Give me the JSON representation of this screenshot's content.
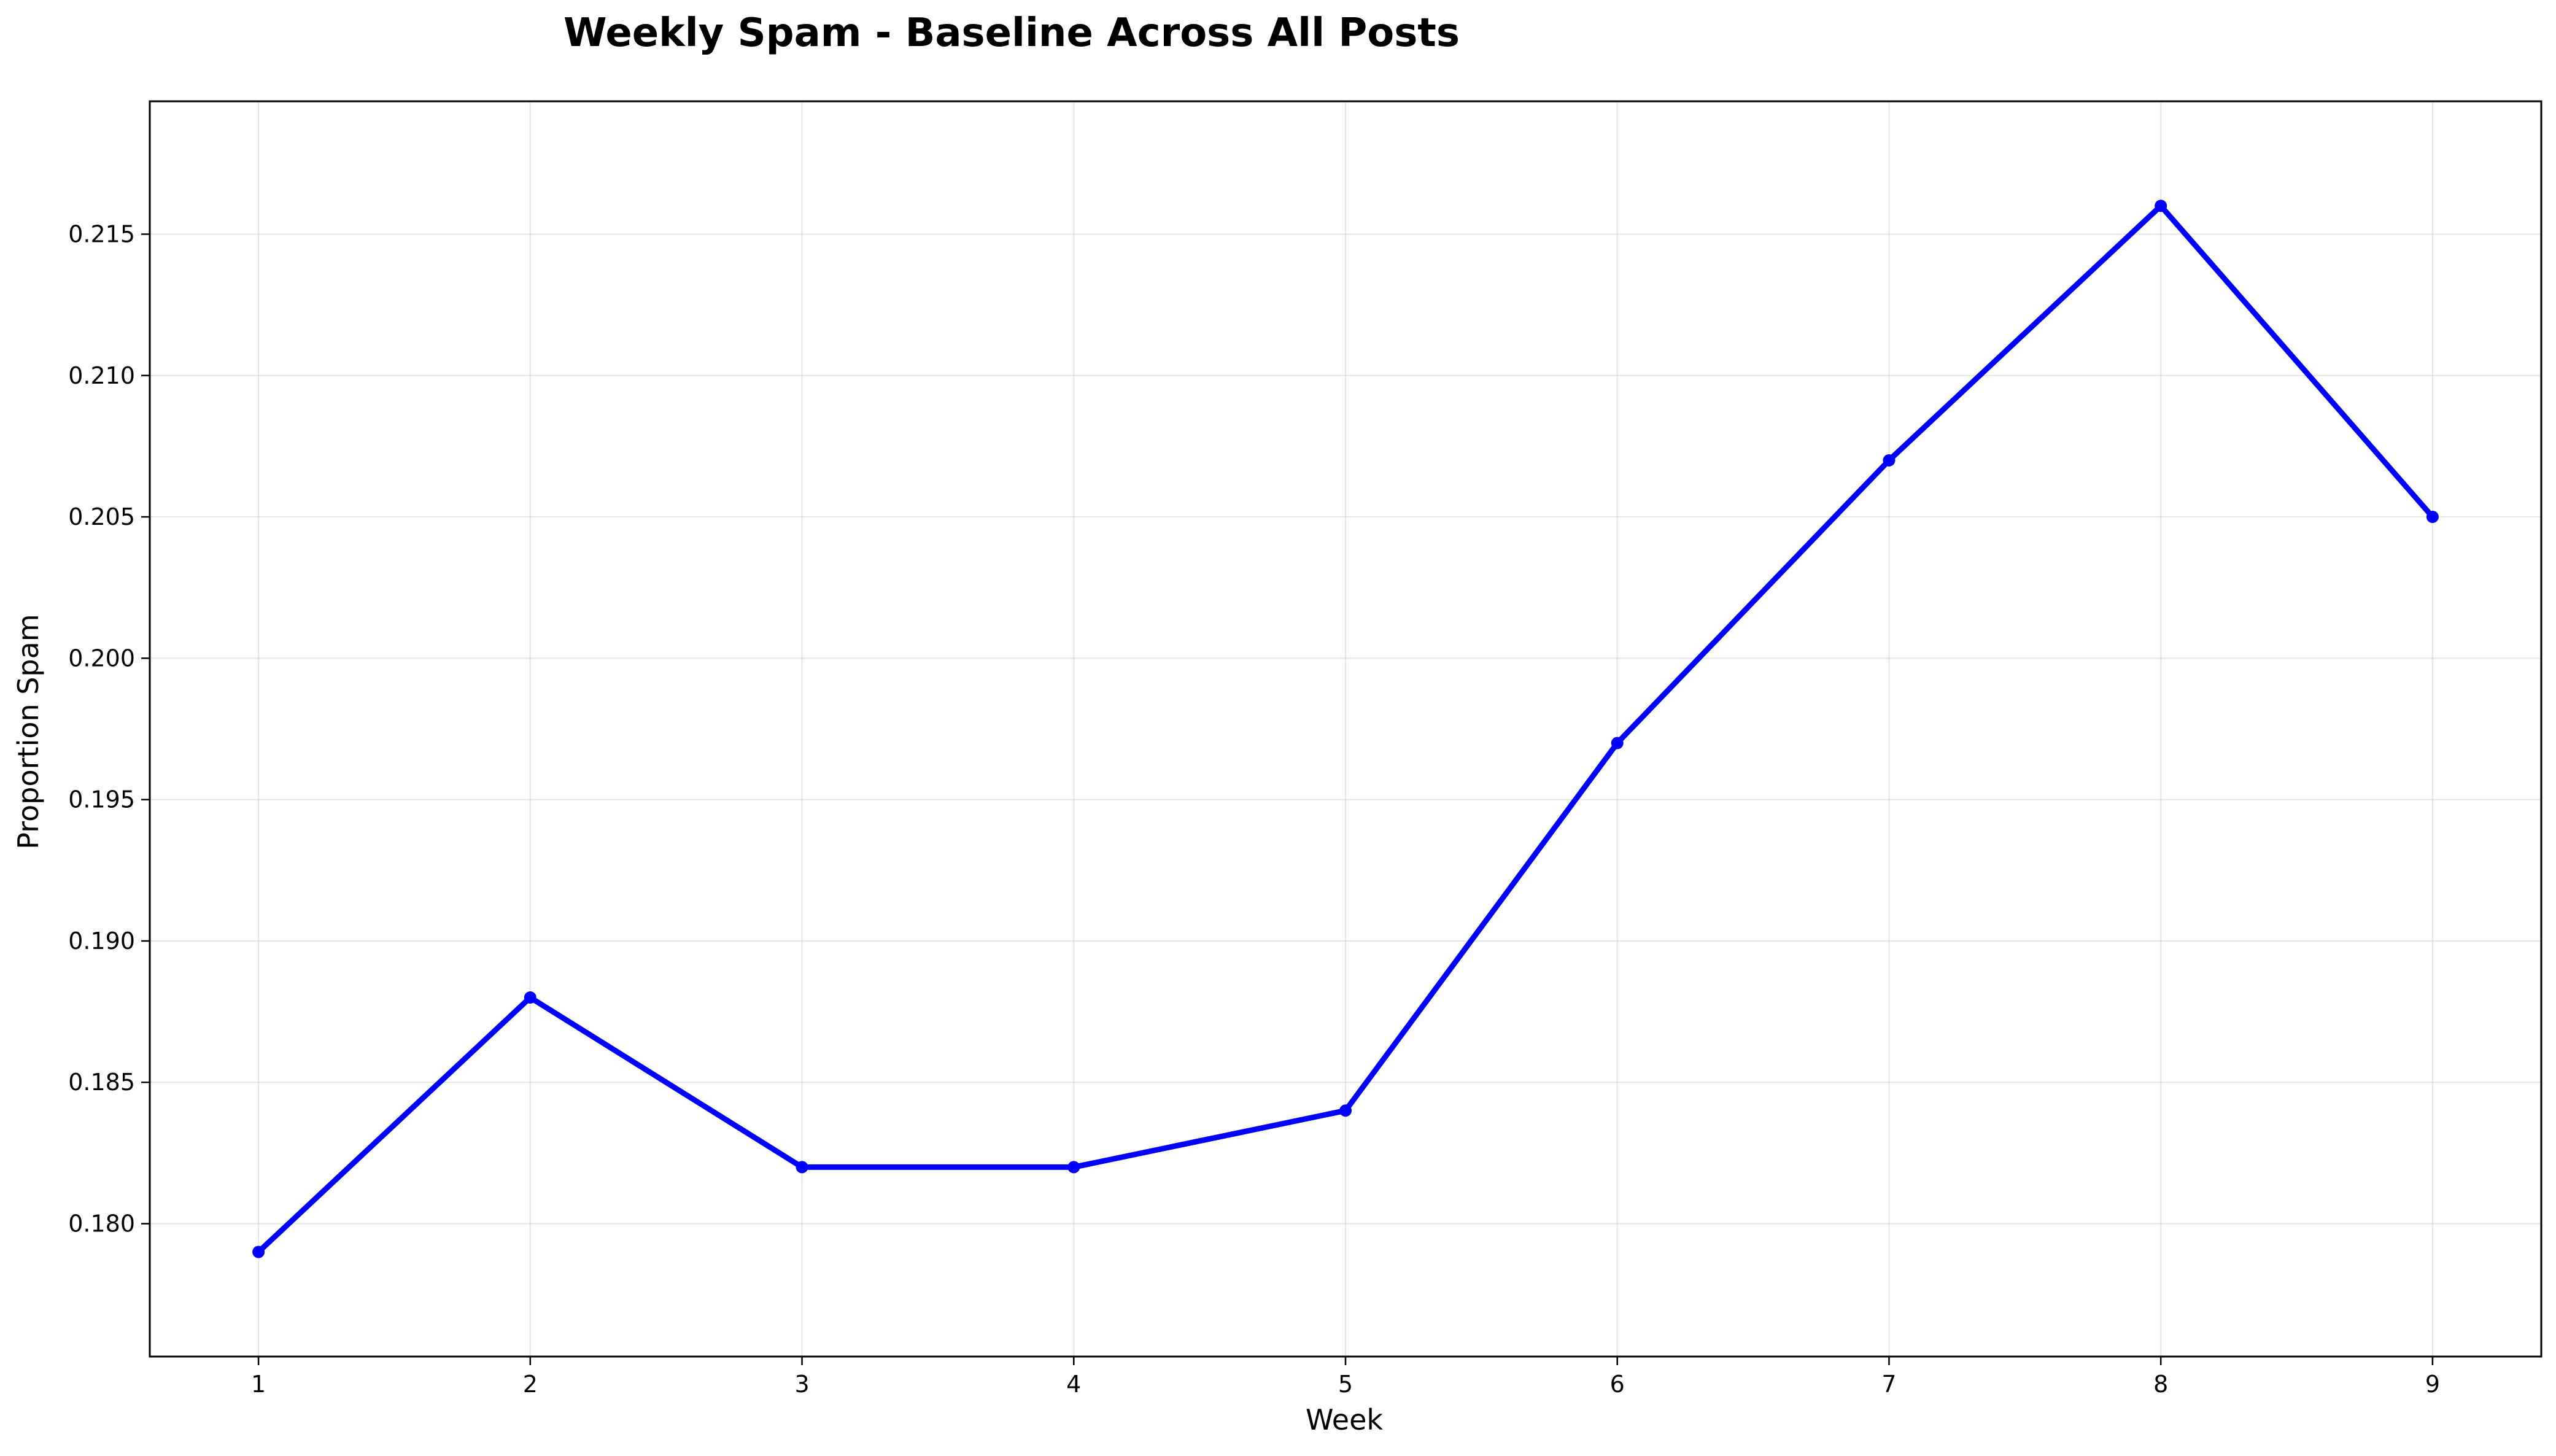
{
  "chart_data": {
    "type": "line",
    "title": "Weekly Spam - Baseline Across All Posts",
    "xlabel": "Week",
    "ylabel": "Proportion Spam",
    "x": [
      1,
      2,
      3,
      4,
      5,
      6,
      7,
      8,
      9
    ],
    "x_tick_labels": [
      "1",
      "2",
      "3",
      "4",
      "5",
      "6",
      "7",
      "8",
      "9"
    ],
    "xlim": [
      0.6,
      9.4
    ],
    "ylim": [
      0.1753,
      0.2197
    ],
    "y_ticks": [
      0.18,
      0.185,
      0.19,
      0.195,
      0.2,
      0.205,
      0.21,
      0.215
    ],
    "y_tick_labels": [
      "0.180",
      "0.185",
      "0.190",
      "0.195",
      "0.200",
      "0.205",
      "0.210",
      "0.215"
    ],
    "series": [
      {
        "values": [
          0.179,
          0.188,
          0.182,
          0.182,
          0.184,
          0.197,
          0.207,
          0.216,
          0.205
        ],
        "color": "#0000ff",
        "marker": "circle"
      }
    ],
    "grid": true,
    "legend": "none"
  }
}
